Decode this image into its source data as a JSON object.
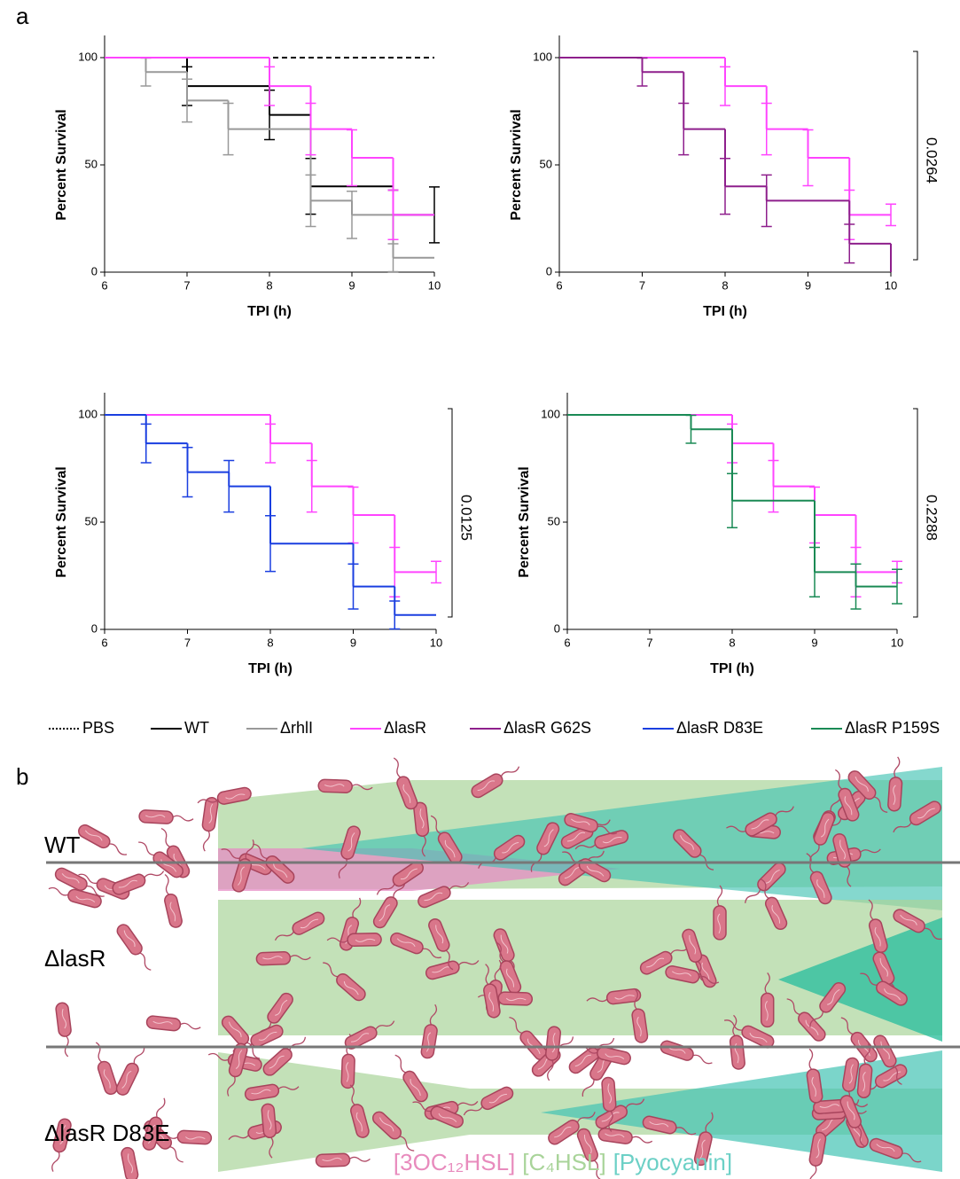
{
  "panel_labels": [
    "a",
    "b"
  ],
  "chart_data": [
    {
      "type": "line",
      "step": true,
      "xlabel": "TPI (h)",
      "ylabel": "Percent Survival",
      "xlim": [
        6,
        10
      ],
      "ylim": [
        0,
        100
      ],
      "xticks": [
        6,
        7,
        8,
        9,
        10
      ],
      "yticks": [
        0,
        50,
        100
      ],
      "series": [
        {
          "name": "PBS",
          "color": "#000000",
          "dashed": true,
          "x": [
            6,
            10
          ],
          "values": [
            100,
            100
          ],
          "errors": [
            null,
            null
          ]
        },
        {
          "name": "WT",
          "color": "#000000",
          "x": [
            6,
            7,
            8,
            8.5,
            9.5,
            10
          ],
          "values": [
            100,
            86.7,
            73.3,
            40,
            26.7,
            26.7
          ],
          "errors": [
            null,
            9,
            11.5,
            13,
            11.5,
            13
          ]
        },
        {
          "name": "ΔrhlI",
          "color": "#999999",
          "x": [
            6,
            6.5,
            7,
            7.5,
            8.5,
            9,
            9.5,
            10
          ],
          "values": [
            100,
            93.3,
            80,
            66.7,
            33.3,
            26.7,
            6.7,
            6.7
          ],
          "errors": [
            null,
            6.5,
            10,
            12,
            12,
            11,
            6.5,
            null
          ]
        },
        {
          "name": "ΔlasR",
          "color": "#ff44ff",
          "x": [
            6,
            8,
            8.5,
            9,
            9.5,
            10
          ],
          "values": [
            100,
            86.7,
            66.7,
            53.3,
            26.7,
            26.7
          ],
          "errors": [
            null,
            9,
            12,
            13,
            11.5,
            null
          ]
        }
      ]
    },
    {
      "type": "line",
      "step": true,
      "xlabel": "TPI (h)",
      "ylabel": "Percent Survival",
      "p_value": "0.0264",
      "xlim": [
        6,
        10
      ],
      "ylim": [
        0,
        100
      ],
      "xticks": [
        6,
        7,
        8,
        9,
        10
      ],
      "yticks": [
        0,
        50,
        100
      ],
      "series": [
        {
          "name": "ΔlasR",
          "color": "#ff44ff",
          "x": [
            6,
            8,
            8.5,
            9,
            9.5,
            10
          ],
          "values": [
            100,
            86.7,
            66.7,
            53.3,
            26.7,
            26.7
          ],
          "errors": [
            null,
            9,
            12,
            13,
            11.5,
            5
          ]
        },
        {
          "name": "ΔlasR G62S",
          "color": "#8e1f8c",
          "x": [
            6,
            7,
            7.5,
            8,
            8.5,
            9.5,
            10
          ],
          "values": [
            100,
            93.3,
            66.7,
            40,
            33.3,
            13.3,
            0
          ],
          "errors": [
            null,
            6.5,
            12,
            13,
            12,
            9,
            null
          ]
        }
      ]
    },
    {
      "type": "line",
      "step": true,
      "xlabel": "TPI (h)",
      "ylabel": "Percent Survival",
      "p_value": "0.0125",
      "xlim": [
        6,
        10
      ],
      "ylim": [
        0,
        100
      ],
      "xticks": [
        6,
        7,
        8,
        9,
        10
      ],
      "yticks": [
        0,
        50,
        100
      ],
      "series": [
        {
          "name": "ΔlasR",
          "color": "#ff44ff",
          "x": [
            6,
            8,
            8.5,
            9,
            9.5,
            10
          ],
          "values": [
            100,
            86.7,
            66.7,
            53.3,
            26.7,
            26.7
          ],
          "errors": [
            null,
            9,
            12,
            13,
            11.5,
            5
          ]
        },
        {
          "name": "ΔlasR D83E",
          "color": "#1a3fe0",
          "x": [
            6,
            6.5,
            7,
            7.5,
            8,
            9,
            9.5,
            10
          ],
          "values": [
            100,
            86.7,
            73.3,
            66.7,
            40,
            20,
            6.7,
            6.7
          ],
          "errors": [
            null,
            9,
            11.5,
            12,
            13,
            10.5,
            6.5,
            null
          ]
        }
      ]
    },
    {
      "type": "line",
      "step": true,
      "xlabel": "TPI (h)",
      "ylabel": "Percent Survival",
      "p_value": "0.2288",
      "xlim": [
        6,
        10
      ],
      "ylim": [
        0,
        100
      ],
      "xticks": [
        6,
        7,
        8,
        9,
        10
      ],
      "yticks": [
        0,
        50,
        100
      ],
      "series": [
        {
          "name": "ΔlasR",
          "color": "#ff44ff",
          "x": [
            6,
            8,
            8.5,
            9,
            9.5,
            10
          ],
          "values": [
            100,
            86.7,
            66.7,
            53.3,
            26.7,
            26.7
          ],
          "errors": [
            null,
            9,
            12,
            13,
            11.5,
            5
          ]
        },
        {
          "name": "ΔlasR P159S",
          "color": "#1a8a55",
          "x": [
            6,
            7.5,
            8,
            9,
            9.5,
            10
          ],
          "values": [
            100,
            93.3,
            60,
            26.7,
            20,
            20
          ],
          "errors": [
            null,
            6.5,
            12.6,
            11.5,
            10.5,
            8
          ]
        }
      ]
    }
  ],
  "panel_b": {
    "rows": [
      "WT",
      "ΔlasR",
      "ΔlasR D83E"
    ],
    "key": [
      "[3OC₁₂HSL]",
      "[C₄HSL]",
      "[Pyocyanin]"
    ]
  }
}
